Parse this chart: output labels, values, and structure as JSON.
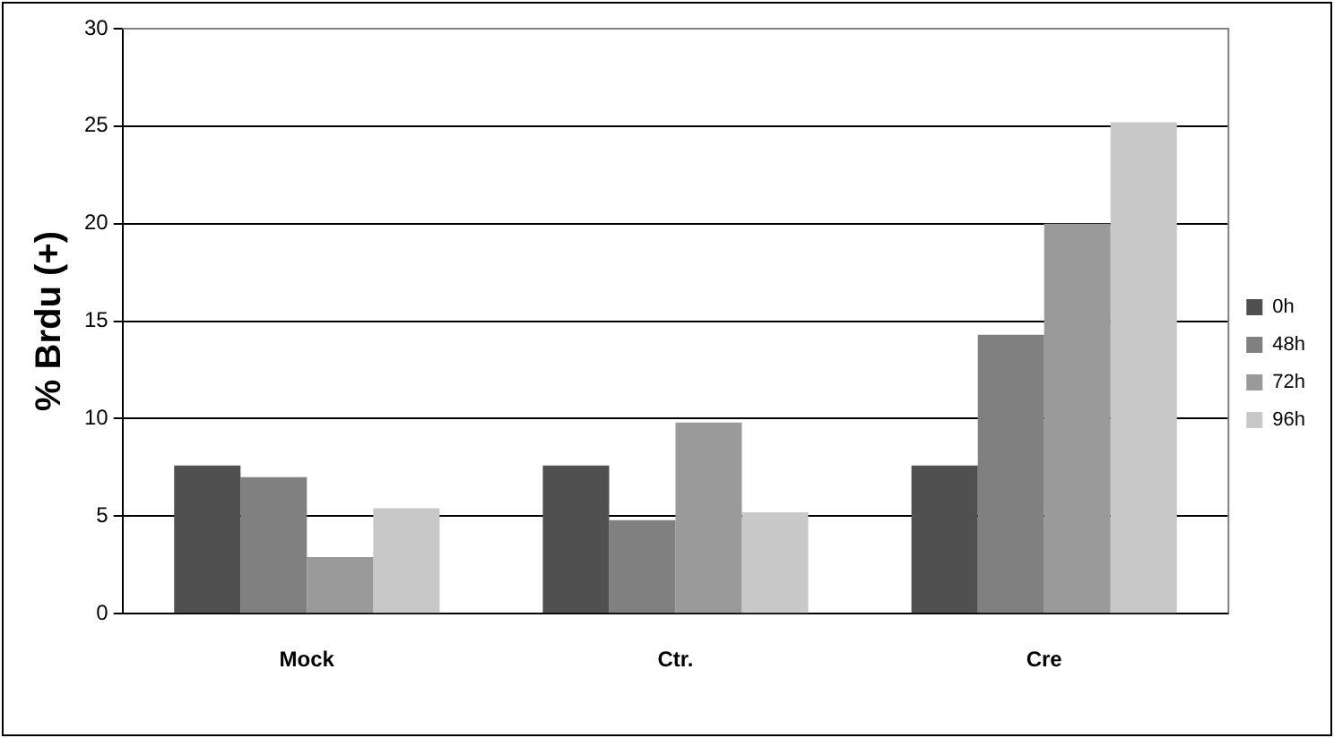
{
  "chart_data": {
    "type": "bar",
    "ylabel": "% Brdu (+)",
    "categories": [
      "Mock",
      "Ctr.",
      "Cre"
    ],
    "series": [
      {
        "name": "0h",
        "color": "#505050",
        "values": [
          7.6,
          7.6,
          7.6
        ]
      },
      {
        "name": "48h",
        "color": "#808080",
        "values": [
          7.0,
          4.8,
          14.3
        ]
      },
      {
        "name": "72h",
        "color": "#9a9a9a",
        "values": [
          2.9,
          9.8,
          20.0
        ]
      },
      {
        "name": "96h",
        "color": "#c8c8c8",
        "values": [
          5.4,
          5.2,
          25.2
        ]
      }
    ],
    "ylim": [
      0,
      30
    ],
    "yticks": [
      0,
      5,
      10,
      15,
      20,
      25,
      30
    ],
    "grid": "y",
    "legend": "right"
  }
}
